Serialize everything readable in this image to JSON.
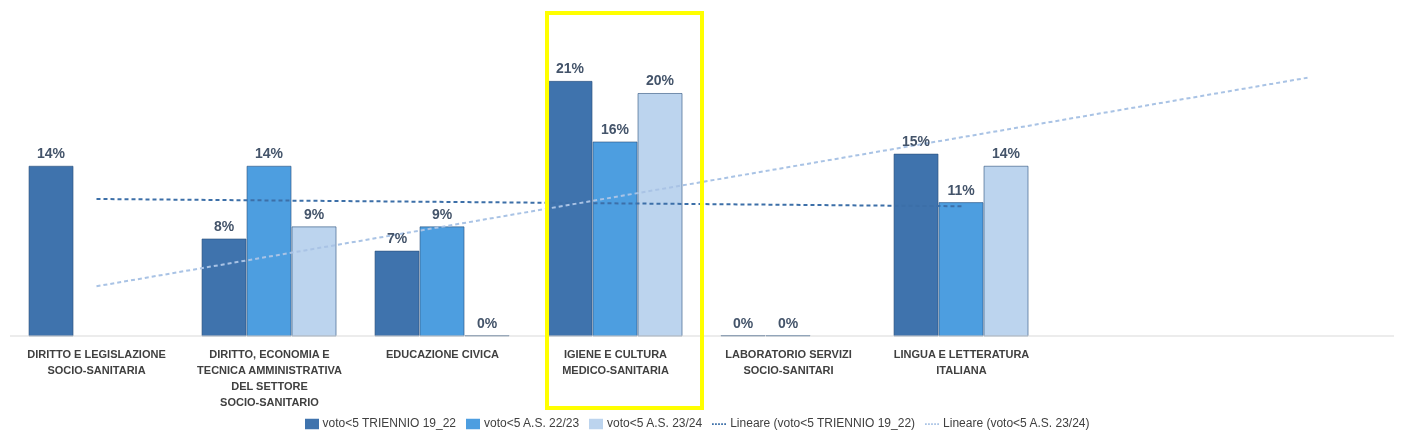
{
  "chart_data": {
    "type": "bar",
    "categories": [
      "DIRITTO E LEGISLAZIONE SOCIO-SANITARIA",
      "DIRITTO, ECONOMIA E TECNICA AMMINISTRATIVA DEL SETTORE SOCIO-SANITARIO",
      "EDUCAZIONE CIVICA",
      "IGIENE E CULTURA MEDICO-SANITARIA",
      "LABORATORIO SERVIZI SOCIO-SANITARI",
      "LINGUA E LETTERATURA ITALIANA",
      null,
      null
    ],
    "series": [
      {
        "name": "voto<5 TRIENNIO 19_22",
        "color": "#3f73ad",
        "values": [
          14,
          8,
          7,
          21,
          0,
          15,
          null,
          null
        ],
        "value_labels": [
          "14%",
          "8%",
          "7%",
          "21%",
          "0%",
          "15%",
          null,
          null
        ]
      },
      {
        "name": "voto<5 A.S. 22/23",
        "color": "#4d9ee0",
        "values": [
          null,
          14,
          9,
          16,
          0,
          11,
          null,
          null
        ],
        "value_labels": [
          null,
          "14%",
          "9%",
          "16%",
          "0%",
          "11%",
          null,
          null
        ]
      },
      {
        "name": "voto<5 A.S. 23/24",
        "color": "#bcd4ee",
        "values": [
          null,
          9,
          0,
          20,
          null,
          14,
          null,
          null
        ],
        "value_labels": [
          null,
          "9%",
          "0%",
          "20%",
          null,
          "14%",
          null,
          null
        ]
      },
      {
        "name": "Lineare (voto<5 TRIENNIO 19_22)",
        "type": "line",
        "line_style": "dashed",
        "color": "#3c6fa8",
        "values": [
          11.3,
          null,
          null,
          null,
          null,
          10.7,
          null,
          null
        ]
      },
      {
        "name": "Lineare (voto<5 A.S. 23/24)",
        "type": "line",
        "line_style": "dashed",
        "color": "#a9c3e5",
        "values": [
          4.1,
          null,
          null,
          null,
          null,
          null,
          null,
          21.3
        ]
      }
    ],
    "legend": "bottom",
    "grid": false
  }
}
